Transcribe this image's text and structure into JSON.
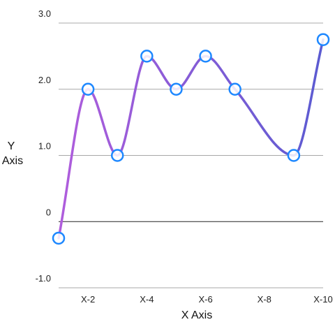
{
  "chart_data": {
    "type": "line",
    "smooth": true,
    "xlabel": "X Axis",
    "ylabel": "Y Axis",
    "x": [
      1,
      2,
      3,
      4,
      5,
      6,
      7,
      8,
      9,
      10
    ],
    "x_tick_labels": [
      "X-2",
      "X-4",
      "X-6",
      "X-8",
      "X-10"
    ],
    "x_tick_positions": [
      2,
      4,
      6,
      8,
      10
    ],
    "y_tick_labels": [
      "3.0",
      "2.0",
      "1.0",
      "0",
      "-1.0"
    ],
    "y_tick_values": [
      3,
      2,
      1,
      0,
      -1
    ],
    "ylim": [
      -1,
      3
    ],
    "xlim": [
      1,
      10
    ],
    "grid": true,
    "series": [
      {
        "points": [
          {
            "x": 1,
            "y": -0.25
          },
          {
            "x": 2,
            "y": 2.0
          },
          {
            "x": 3,
            "y": 1.0
          },
          {
            "x": 4,
            "y": 2.5
          },
          {
            "x": 5,
            "y": 2.0
          },
          {
            "x": 6,
            "y": 2.5
          },
          {
            "x": 7,
            "y": 2.0
          },
          {
            "x": 9,
            "y": 1.0
          },
          {
            "x": 10,
            "y": 2.75
          }
        ]
      }
    ],
    "colors": {
      "line_start": "#b05ddc",
      "line_end": "#5b5bd1",
      "marker_stroke": "#1e88ff",
      "marker_fill": "#ffffff"
    }
  }
}
